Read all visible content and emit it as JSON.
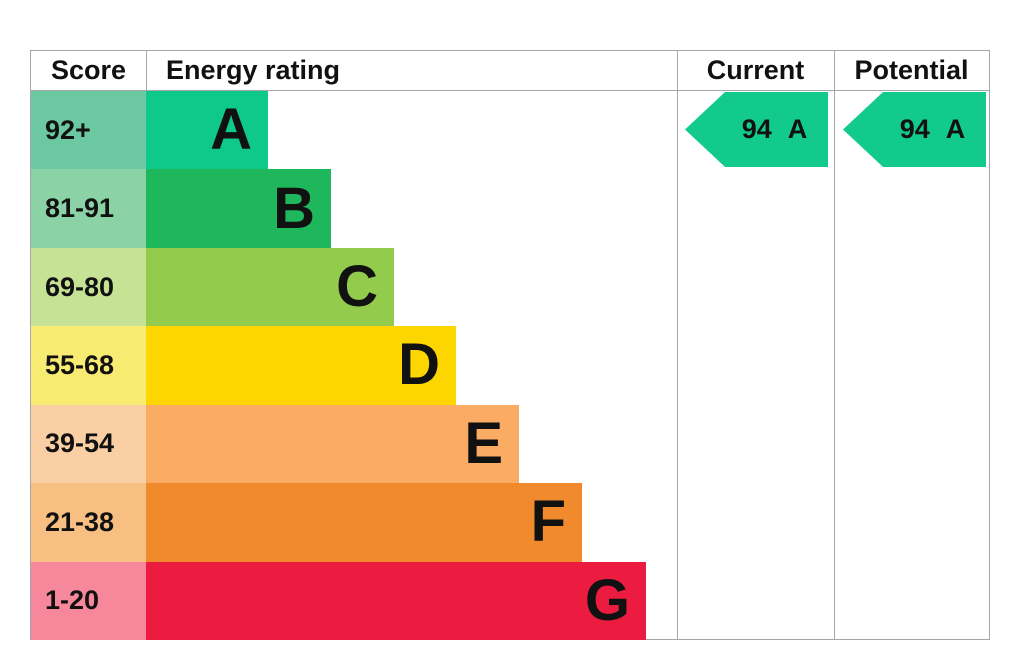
{
  "header": {
    "score": "Score",
    "energy_rating": "Energy rating",
    "current": "Current",
    "potential": "Potential"
  },
  "chart_data": {
    "type": "bar",
    "columns": [
      "Score",
      "Energy rating",
      "Current",
      "Potential"
    ],
    "bands": [
      {
        "score_range": "92+",
        "rating": "A",
        "color": "#0fc98a",
        "tint": "#6cc8a1",
        "bar_length": 122
      },
      {
        "score_range": "81-91",
        "rating": "B",
        "color": "#1eb75b",
        "tint": "#8bd3a6",
        "bar_length": 185
      },
      {
        "score_range": "69-80",
        "rating": "C",
        "color": "#93cb4c",
        "tint": "#c6e395",
        "bar_length": 248
      },
      {
        "score_range": "55-68",
        "rating": "D",
        "color": "#fdd601",
        "tint": "#f8eb72",
        "bar_length": 310
      },
      {
        "score_range": "39-54",
        "rating": "E",
        "color": "#fbac64",
        "tint": "#fbcfa4",
        "bar_length": 373
      },
      {
        "score_range": "21-38",
        "rating": "F",
        "color": "#f18a2c",
        "tint": "#f8bf83",
        "bar_length": 436
      },
      {
        "score_range": "1-20",
        "rating": "G",
        "color": "#ec1b40",
        "tint": "#f7879b",
        "bar_length": 500
      }
    ],
    "current": {
      "score": "94",
      "rating": "A",
      "color": "#12ca8c"
    },
    "potential": {
      "score": "94",
      "rating": "A",
      "color": "#12ca8c"
    },
    "layout": {
      "legend": "none",
      "grid": "column-separators-only"
    }
  },
  "colors": {
    "border": "#a6a6a6",
    "background": "#ffffff",
    "text": "#111111"
  }
}
